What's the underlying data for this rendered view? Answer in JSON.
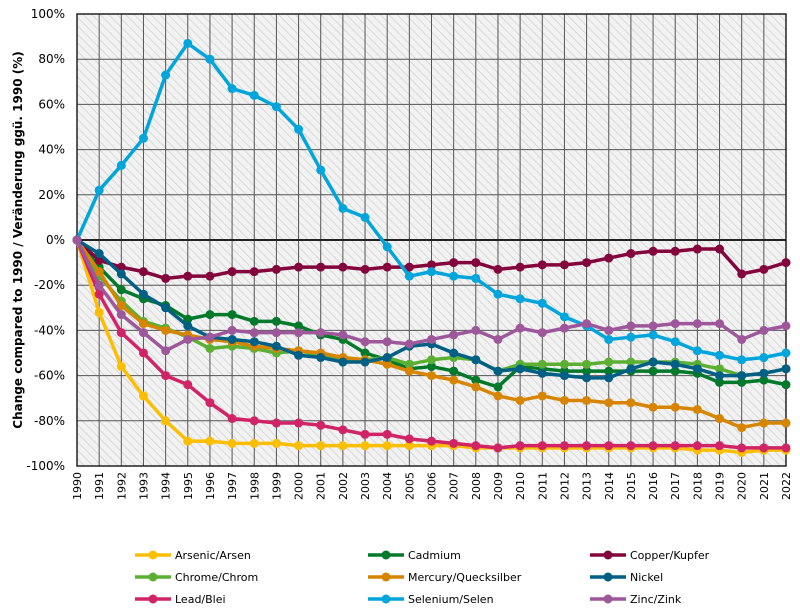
{
  "chart_data": {
    "type": "line",
    "title": "",
    "xlabel": "",
    "ylabel": "Change compared to 1990 / Veränderung ggü. 1990 (%)",
    "ylim": [
      -100,
      100
    ],
    "yticks": [
      100,
      80,
      60,
      40,
      20,
      0,
      -20,
      -40,
      -60,
      -80,
      -100
    ],
    "ytick_labels": [
      "100%",
      "80%",
      "60%",
      "40%",
      "20%",
      "0%",
      "-20%",
      "-40%",
      "-60%",
      "-80%",
      "-100%"
    ],
    "x": [
      1990,
      1991,
      1992,
      1993,
      1994,
      1995,
      1996,
      1997,
      1998,
      1999,
      2000,
      2001,
      2002,
      2003,
      2004,
      2005,
      2006,
      2007,
      2008,
      2009,
      2010,
      2011,
      2012,
      2013,
      2014,
      2015,
      2016,
      2017,
      2018,
      2019,
      2020,
      2021,
      2022
    ],
    "grid": true,
    "legend_placement": "bottom",
    "series": [
      {
        "name": "Arsenic/Arsen",
        "color": "#fbbe00",
        "values": [
          0,
          -32,
          -56,
          -69,
          -80,
          -89,
          -89,
          -90,
          -90,
          -90,
          -91,
          -91,
          -91,
          -91,
          -91,
          -91,
          -91,
          -91,
          -92,
          -92,
          -92,
          -92,
          -92,
          -92,
          -92,
          -92,
          -92,
          -92,
          -93,
          -93,
          -94,
          -93,
          -93
        ]
      },
      {
        "name": "Cadmium",
        "color": "#007a2a",
        "values": [
          0,
          -12,
          -22,
          -26,
          -29,
          -35,
          -33,
          -33,
          -36,
          -36,
          -38,
          -42,
          -44,
          -50,
          -53,
          -57,
          -56,
          -58,
          -62,
          -65,
          -56,
          -57,
          -58,
          -58,
          -58,
          -58,
          -58,
          -58,
          -59,
          -63,
          -63,
          -62,
          -64
        ]
      },
      {
        "name": "Copper/Kupfer",
        "color": "#83053c",
        "values": [
          0,
          -9,
          -12,
          -14,
          -17,
          -16,
          -16,
          -14,
          -14,
          -13,
          -12,
          -12,
          -12,
          -13,
          -12,
          -12,
          -11,
          -10,
          -10,
          -13,
          -12,
          -11,
          -11,
          -10,
          -8,
          -6,
          -5,
          -5,
          -4,
          -4,
          -15,
          -13,
          -10
        ]
      },
      {
        "name": "Chrome/Chrom",
        "color": "#5bb033",
        "values": [
          0,
          -16,
          -27,
          -36,
          -39,
          -43,
          -48,
          -47,
          -48,
          -50,
          -49,
          -51,
          -53,
          -53,
          -52,
          -55,
          -53,
          -52,
          -53,
          -58,
          -55,
          -55,
          -55,
          -55,
          -54,
          -54,
          -54,
          -54,
          -55,
          -57,
          -60,
          -59,
          -57
        ]
      },
      {
        "name": "Mercury/Quecksilber",
        "color": "#d78400",
        "values": [
          0,
          -14,
          -29,
          -37,
          -40,
          -42,
          -44,
          -45,
          -47,
          -48,
          -49,
          -50,
          -52,
          -53,
          -55,
          -58,
          -60,
          -62,
          -65,
          -69,
          -71,
          -69,
          -71,
          -71,
          -72,
          -72,
          -74,
          -74,
          -75,
          -79,
          -83,
          -81,
          -81
        ]
      },
      {
        "name": "Nickel",
        "color": "#005f85",
        "values": [
          0,
          -6,
          -15,
          -24,
          -30,
          -38,
          -43,
          -44,
          -45,
          -47,
          -51,
          -52,
          -54,
          -54,
          -52,
          -47,
          -46,
          -50,
          -53,
          -58,
          -57,
          -59,
          -60,
          -61,
          -61,
          -57,
          -54,
          -55,
          -57,
          -60,
          -60,
          -59,
          -57
        ]
      },
      {
        "name": "Lead/Blei",
        "color": "#d02466",
        "values": [
          0,
          -24,
          -41,
          -50,
          -60,
          -64,
          -72,
          -79,
          -80,
          -81,
          -81,
          -82,
          -84,
          -86,
          -86,
          -88,
          -89,
          -90,
          -91,
          -92,
          -91,
          -91,
          -91,
          -91,
          -91,
          -91,
          -91,
          -91,
          -91,
          -91,
          -92,
          -92,
          -92
        ]
      },
      {
        "name": "Selenium/Selen",
        "color": "#00a5db",
        "values": [
          0,
          22,
          33,
          45,
          73,
          87,
          80,
          67,
          64,
          59,
          49,
          31,
          14,
          10,
          -3,
          -16,
          -14,
          -16,
          -17,
          -24,
          -26,
          -28,
          -34,
          -38,
          -44,
          -43,
          -42,
          -45,
          -49,
          -51,
          -53,
          -52,
          -50
        ]
      },
      {
        "name": "Zinc/Zink",
        "color": "#9d579a",
        "values": [
          0,
          -20,
          -33,
          -41,
          -49,
          -44,
          -43,
          -40,
          -41,
          -41,
          -41,
          -41,
          -42,
          -45,
          -45,
          -46,
          -44,
          -42,
          -40,
          -44,
          -39,
          -41,
          -39,
          -37,
          -40,
          -38,
          -38,
          -37,
          -37,
          -37,
          -44,
          -40,
          -38
        ]
      }
    ]
  }
}
